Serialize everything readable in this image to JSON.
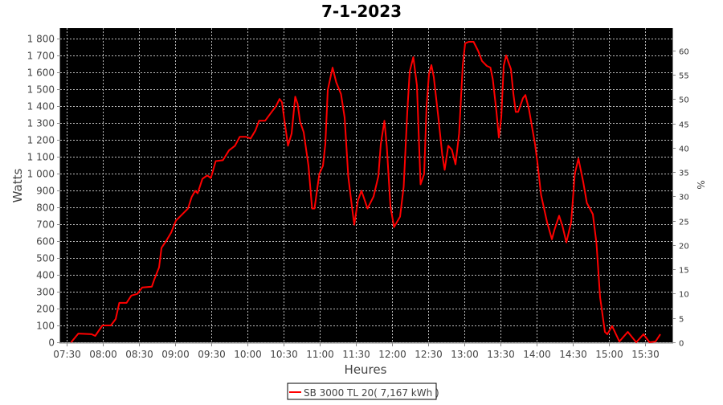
{
  "chart_data": {
    "type": "line",
    "title": "7-1-2023",
    "xlabel": "Heures",
    "ylabel": "Watts",
    "y2label": "%",
    "xlim": [
      "07:25",
      "15:53"
    ],
    "ylim": [
      0,
      1862
    ],
    "y2lim": [
      0,
      64.6
    ],
    "x_ticks": [
      "07:30",
      "08:00",
      "08:30",
      "09:00",
      "09:30",
      "10:00",
      "10:30",
      "11:00",
      "11:30",
      "12:00",
      "12:30",
      "13:00",
      "13:30",
      "14:00",
      "14:30",
      "15:00",
      "15:30"
    ],
    "y_ticks": [
      0,
      100,
      200,
      300,
      400,
      500,
      600,
      700,
      800,
      900,
      1000,
      1100,
      1200,
      1300,
      1400,
      1500,
      1600,
      1700,
      1800
    ],
    "y_tick_labels": [
      "0",
      "100",
      "200",
      "300",
      "400",
      "500",
      "600",
      "700",
      "800",
      "900",
      "1 000",
      "1 100",
      "1 200",
      "1 300",
      "1 400",
      "1 500",
      "1 600",
      "1 700",
      "1 800"
    ],
    "y2_ticks": [
      0,
      5,
      10,
      15,
      20,
      25,
      30,
      35,
      40,
      45,
      50,
      55,
      60
    ],
    "grid": true,
    "background": "#000000",
    "legend_position": "bottom",
    "series": [
      {
        "name": "SB 3000 TL 20( 7,167 kWh )",
        "color": "#ff0000",
        "x": [
          "07:34",
          "07:40",
          "07:51",
          "07:54",
          "08:00",
          "08:07",
          "08:11",
          "08:14",
          "08:20",
          "08:24",
          "08:29",
          "08:33",
          "08:41",
          "08:43",
          "08:47",
          "08:49",
          "08:53",
          "08:57",
          "09:01",
          "09:07",
          "09:11",
          "09:14",
          "09:17",
          "09:19",
          "09:23",
          "09:27",
          "09:30",
          "09:34",
          "09:40",
          "09:45",
          "09:50",
          "09:54",
          "09:59",
          "10:03",
          "10:07",
          "10:10",
          "10:15",
          "10:20",
          "10:24",
          "10:27",
          "10:29",
          "10:31",
          "10:34",
          "10:37",
          "10:40",
          "10:42",
          "10:44",
          "10:47",
          "10:51",
          "10:54",
          "10:56",
          "11:00",
          "11:03",
          "11:05",
          "11:07",
          "11:11",
          "11:14",
          "11:18",
          "11:21",
          "11:24",
          "11:27",
          "11:29",
          "11:32",
          "11:35",
          "11:40",
          "11:45",
          "11:49",
          "11:51",
          "11:54",
          "11:56",
          "11:59",
          "12:02",
          "12:07",
          "12:10",
          "12:13",
          "12:15",
          "12:18",
          "12:21",
          "12:24",
          "12:27",
          "12:29",
          "12:31",
          "12:33",
          "12:35",
          "12:39",
          "12:42",
          "12:44",
          "12:47",
          "12:50",
          "12:53",
          "12:56",
          "12:59",
          "13:01",
          "13:04",
          "13:08",
          "13:12",
          "13:15",
          "13:19",
          "13:22",
          "13:24",
          "13:27",
          "13:29",
          "13:31",
          "13:33",
          "13:35",
          "13:39",
          "13:41",
          "13:43",
          "13:45",
          "13:49",
          "13:51",
          "13:54",
          "13:59",
          "14:01",
          "14:04",
          "14:09",
          "14:13",
          "14:15",
          "14:19",
          "14:22",
          "14:25",
          "14:29",
          "14:32",
          "14:35",
          "14:39",
          "14:42",
          "14:47",
          "14:50",
          "14:53",
          "14:57",
          "14:59",
          "15:03",
          "15:09",
          "15:16",
          "15:23",
          "15:29",
          "15:34",
          "15:39",
          "15:43"
        ],
        "values": [
          0,
          52,
          48,
          38,
          100,
          100,
          138,
          234,
          234,
          277,
          287,
          325,
          330,
          372,
          444,
          559,
          602,
          650,
          721,
          764,
          793,
          860,
          898,
          883,
          969,
          989,
          974,
          1074,
          1079,
          1137,
          1165,
          1218,
          1218,
          1208,
          1256,
          1313,
          1313,
          1361,
          1399,
          1442,
          1423,
          1318,
          1165,
          1237,
          1456,
          1413,
          1308,
          1246,
          1046,
          793,
          793,
          998,
          1046,
          1175,
          1495,
          1628,
          1542,
          1471,
          1332,
          984,
          807,
          697,
          840,
          898,
          793,
          864,
          984,
          1175,
          1313,
          1160,
          807,
          683,
          745,
          922,
          1366,
          1605,
          1690,
          1523,
          936,
          998,
          1399,
          1590,
          1643,
          1571,
          1318,
          1113,
          1022,
          1165,
          1141,
          1055,
          1237,
          1638,
          1772,
          1781,
          1781,
          1724,
          1667,
          1638,
          1628,
          1557,
          1366,
          1213,
          1332,
          1638,
          1700,
          1619,
          1475,
          1366,
          1366,
          1447,
          1466,
          1380,
          1175,
          1065,
          874,
          712,
          611,
          664,
          750,
          683,
          592,
          712,
          998,
          1089,
          950,
          826,
          759,
          587,
          267,
          62,
          48,
          96,
          5,
          62,
          0,
          48,
          0,
          5,
          48
        ]
      }
    ]
  }
}
